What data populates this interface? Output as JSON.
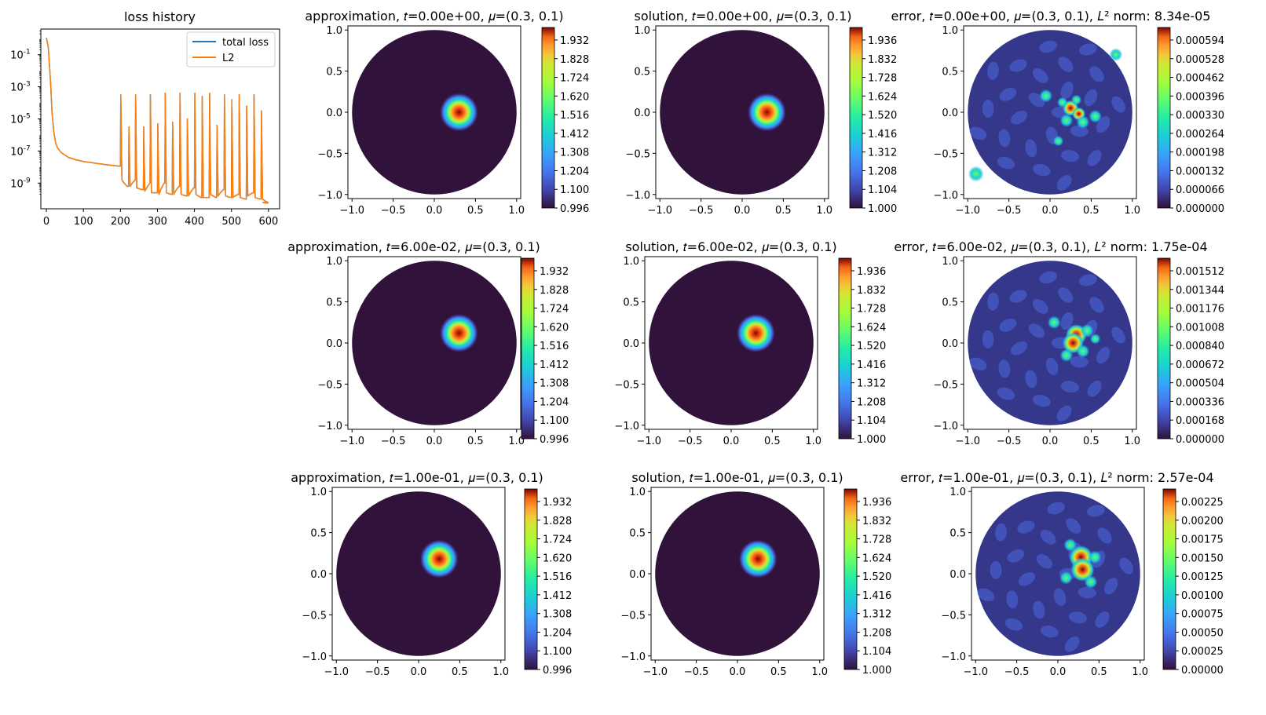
{
  "chart_data": {
    "type": "figure",
    "loss": {
      "type": "line",
      "title": "loss history",
      "yscale": "log",
      "xlim": [
        -15,
        630
      ],
      "ylim_log10": [
        -10.6,
        0.6
      ],
      "xticks": [
        "0",
        "100",
        "200",
        "300",
        "400",
        "500",
        "600"
      ],
      "xtick_values": [
        0,
        100,
        200,
        300,
        400,
        500,
        600
      ],
      "yticks": [
        -9,
        -7,
        -5,
        -3,
        -1
      ],
      "yticklabels": [
        "10",
        "10",
        "10",
        "10",
        "10"
      ],
      "ytick_exponents": [
        "-9",
        "-7",
        "-5",
        "-3",
        "-1"
      ],
      "legend": [
        "total loss",
        "L2"
      ],
      "legend_position": "upper-right",
      "series_colors": [
        "#1f77b4",
        "#ff7f0e"
      ],
      "series": [
        {
          "name": "total loss",
          "x": [
            0,
            1,
            3,
            5,
            8,
            12,
            15,
            20,
            25,
            30,
            40,
            50,
            60,
            80,
            100,
            130,
            160,
            198
          ],
          "log10_values": [
            0.05,
            -0.05,
            -0.3,
            -0.5,
            -1.5,
            -3.0,
            -4.5,
            -5.8,
            -6.5,
            -6.8,
            -7.1,
            -7.25,
            -7.4,
            -7.55,
            -7.65,
            -7.75,
            -7.85,
            -7.95
          ]
        },
        {
          "name": "L2",
          "x": [
            0,
            1,
            3,
            5,
            8,
            12,
            15,
            20,
            25,
            30,
            40,
            50,
            60,
            80,
            100,
            130,
            160,
            198
          ],
          "log10_values": [
            0.05,
            -0.05,
            -0.3,
            -0.5,
            -1.5,
            -3.0,
            -4.5,
            -5.8,
            -6.5,
            -6.8,
            -7.1,
            -7.25,
            -7.4,
            -7.55,
            -7.65,
            -7.75,
            -7.85,
            -7.95
          ]
        }
      ],
      "spikes": [
        {
          "x": 200,
          "peak": -3.5,
          "low": -8.8,
          "end": -9.2
        },
        {
          "x": 222,
          "peak": -5.5,
          "low": -9.2,
          "end": -8.8
        },
        {
          "x": 240,
          "peak": -3.5,
          "low": -9.3,
          "end": -9.4
        },
        {
          "x": 262,
          "peak": -5.5,
          "low": -9.5,
          "end": -9.0
        },
        {
          "x": 280,
          "peak": -3.5,
          "low": -9.6,
          "end": -9.6
        },
        {
          "x": 300,
          "peak": -5.3,
          "low": -9.7,
          "end": -9.0
        },
        {
          "x": 320,
          "peak": -3.4,
          "low": -9.6,
          "end": -9.7
        },
        {
          "x": 340,
          "peak": -5.2,
          "low": -9.7,
          "end": -9.2
        },
        {
          "x": 360,
          "peak": -3.4,
          "low": -9.7,
          "end": -9.8
        },
        {
          "x": 380,
          "peak": -5.0,
          "low": -9.8,
          "end": -9.3
        },
        {
          "x": 400,
          "peak": -3.4,
          "low": -9.7,
          "end": -9.9
        },
        {
          "x": 420,
          "peak": -3.6,
          "low": -9.9,
          "end": -9.9
        },
        {
          "x": 440,
          "peak": -3.4,
          "low": -9.7,
          "end": -9.9
        },
        {
          "x": 460,
          "peak": -5.4,
          "low": -9.8,
          "end": -9.4
        },
        {
          "x": 480,
          "peak": -3.5,
          "low": -9.8,
          "end": -9.9
        },
        {
          "x": 500,
          "peak": -3.8,
          "low": -9.9,
          "end": -9.7
        },
        {
          "x": 520,
          "peak": -3.5,
          "low": -9.9,
          "end": -10.0
        },
        {
          "x": 540,
          "peak": -4.2,
          "low": -9.8,
          "end": -9.6
        },
        {
          "x": 560,
          "peak": -3.5,
          "low": -9.9,
          "end": -10.0
        },
        {
          "x": 580,
          "peak": -4.5,
          "low": -10.0,
          "end": -10.2
        }
      ],
      "tail": {
        "x": [
          585,
          592,
          600
        ],
        "log10_values": [
          -10.2,
          -10.25,
          -10.25
        ]
      }
    },
    "fields": {
      "type": "heatmap",
      "domain": "unit disk",
      "xlim": [
        -1.05,
        1.05
      ],
      "ylim": [
        -1.05,
        1.05
      ],
      "axis_ticks": [
        "−1.0",
        "−0.5",
        "0.0",
        "0.5",
        "1.0"
      ],
      "axis_tick_values": [
        -1.0,
        -0.5,
        0.0,
        0.5,
        1.0
      ],
      "mu": [
        0.3,
        0.1
      ],
      "rows": [
        {
          "t": "0.00e+00",
          "center": [
            0.3,
            0.0
          ],
          "titles": {
            "approx": "approximation, 𝑡=0.00e+00, 𝜇=(0.3, 0.1)",
            "solution": "solution, 𝑡=0.00e+00, 𝜇=(0.3, 0.1)",
            "error": "error, 𝑡=0.00e+00, 𝜇=(0.3, 0.1), 𝐿² norm: 8.34e-05"
          },
          "approx_cbar": [
            "1.932",
            "1.828",
            "1.724",
            "1.620",
            "1.516",
            "1.412",
            "1.308",
            "1.204",
            "1.100",
            "0.996"
          ],
          "solution_cbar": [
            "1.936",
            "1.832",
            "1.728",
            "1.624",
            "1.520",
            "1.416",
            "1.312",
            "1.208",
            "1.104",
            "1.000"
          ],
          "error_cbar": [
            "0.000594",
            "0.000528",
            "0.000462",
            "0.000396",
            "0.000330",
            "0.000264",
            "0.000198",
            "0.000132",
            "0.000066",
            "0.000000"
          ]
        },
        {
          "t": "6.00e-02",
          "center": [
            0.3,
            0.12
          ],
          "titles": {
            "approx": "approximation, 𝑡=6.00e-02, 𝜇=(0.3, 0.1)",
            "solution": "solution, 𝑡=6.00e-02, 𝜇=(0.3, 0.1)",
            "error": "error, 𝑡=6.00e-02, 𝜇=(0.3, 0.1), 𝐿² norm: 1.75e-04"
          },
          "approx_cbar": [
            "1.932",
            "1.828",
            "1.724",
            "1.620",
            "1.516",
            "1.412",
            "1.308",
            "1.204",
            "1.100",
            "0.996"
          ],
          "solution_cbar": [
            "1.936",
            "1.832",
            "1.728",
            "1.624",
            "1.520",
            "1.416",
            "1.312",
            "1.208",
            "1.104",
            "1.000"
          ],
          "error_cbar": [
            "0.001512",
            "0.001344",
            "0.001176",
            "0.001008",
            "0.000840",
            "0.000672",
            "0.000504",
            "0.000336",
            "0.000168",
            "0.000000"
          ]
        },
        {
          "t": "1.00e-01",
          "center": [
            0.25,
            0.18
          ],
          "titles": {
            "approx": "approximation, 𝑡=1.00e-01, 𝜇=(0.3, 0.1)",
            "solution": "solution, 𝑡=1.00e-01, 𝜇=(0.3, 0.1)",
            "error": "error, 𝑡=1.00e-01, 𝜇=(0.3, 0.1), 𝐿² norm: 2.57e-04"
          },
          "approx_cbar": [
            "1.932",
            "1.828",
            "1.724",
            "1.620",
            "1.516",
            "1.412",
            "1.308",
            "1.204",
            "1.100",
            "0.996"
          ],
          "solution_cbar": [
            "1.936",
            "1.832",
            "1.728",
            "1.624",
            "1.520",
            "1.416",
            "1.312",
            "1.208",
            "1.104",
            "1.000"
          ],
          "error_cbar": [
            "0.00225",
            "0.00200",
            "0.00175",
            "0.00150",
            "0.00125",
            "0.00100",
            "0.00075",
            "0.00050",
            "0.00025",
            "0.00000"
          ]
        }
      ]
    }
  }
}
